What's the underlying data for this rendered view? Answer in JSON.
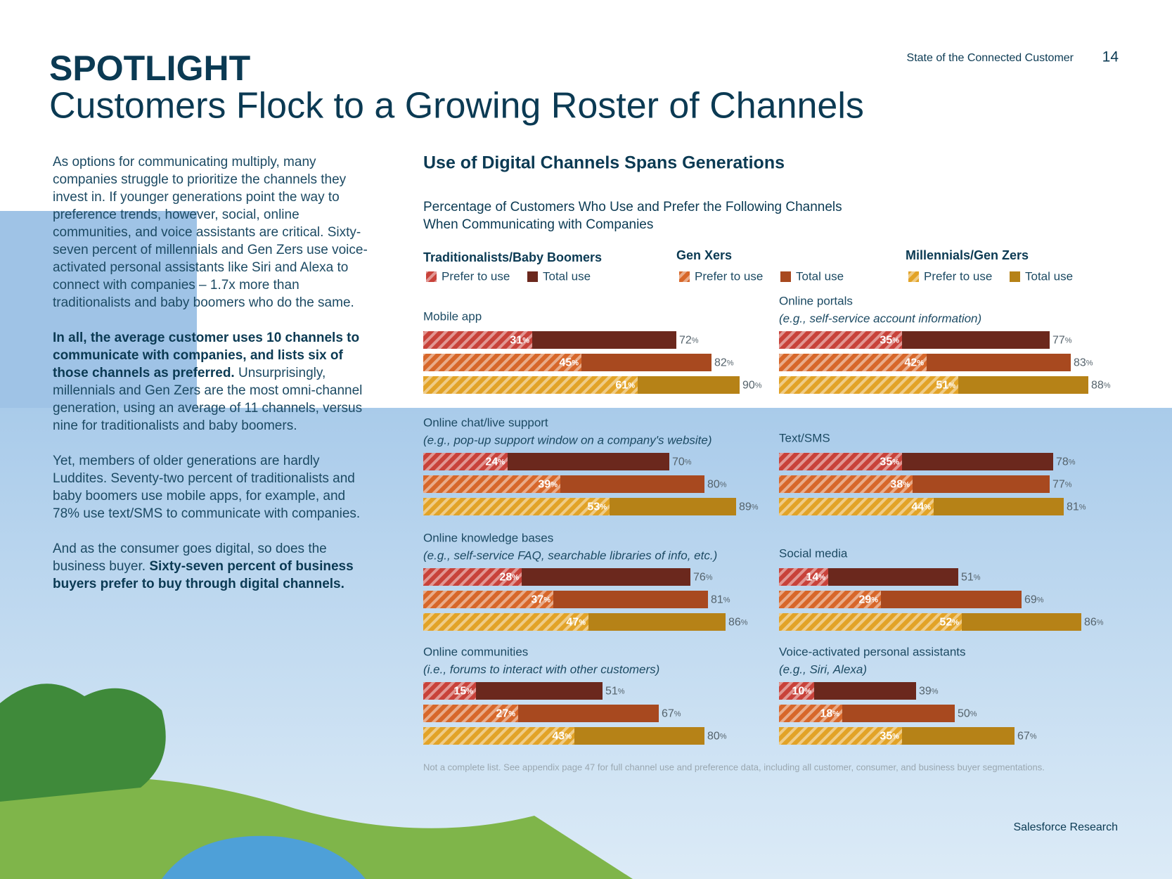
{
  "header": {
    "report": "State of the Connected Customer",
    "page": "14",
    "kicker": "SPOTLIGHT",
    "title": "Customers Flock to a Growing Roster of Channels"
  },
  "body": {
    "paragraphs": [
      [
        {
          "text": "As options for communicating multiply, many companies struggle to prioritize the channels they invest in. If younger generations point the way to preference trends, however, social, online communities, and voice assistants are critical. Sixty-seven percent of millennials and Gen Zers use voice-activated personal assistants like Siri and Alexa to connect with companies – 1.7x more than traditionalists and baby boomers who do the same.",
          "bold": false
        }
      ],
      [
        {
          "text": "In all, the average customer uses 10 channels to communicate with companies, and lists six of those channels as preferred.",
          "bold": true
        },
        {
          "text": " Unsurprisingly, millennials and Gen Zers are the most omni-channel generation, using an average of 11 channels, versus nine for traditionalists and baby boomers.",
          "bold": false
        }
      ],
      [
        {
          "text": "Yet, members of older generations are hardly Luddites. Seventy-two percent of traditionalists and baby boomers use mobile apps, for example, and 78% use text/SMS to communicate with companies.",
          "bold": false
        }
      ],
      [
        {
          "text": "And as the consumer goes digital, so does the business buyer. ",
          "bold": false
        },
        {
          "text": "Sixty-seven percent of business buyers prefer to buy through digital channels.",
          "bold": true
        }
      ]
    ]
  },
  "chart": {
    "title": "Use of Digital Channels Spans Generations",
    "subtitle": [
      "Percentage of Customers Who Use and Prefer the Following Channels",
      "When Communicating with Companies"
    ],
    "unit": "%",
    "generations": [
      {
        "name": "Traditionalists/Baby Boomers",
        "prefer_label": "Prefer to use",
        "total_label": "Total use",
        "total_color": "#6b281d",
        "prefer_color": "#c8423a"
      },
      {
        "name": "Gen Xers",
        "prefer_label": "Prefer to use",
        "total_label": "Total use",
        "total_color": "#a8491f",
        "prefer_color": "#d7672a"
      },
      {
        "name": "Millennials/Gen Zers",
        "prefer_label": "Prefer to use",
        "total_label": "Total use",
        "total_color": "#b68217",
        "prefer_color": "#e2a327"
      }
    ],
    "panels": [
      {
        "label": "Mobile app",
        "rows": [
          {
            "prefer": 31,
            "total": 72
          },
          {
            "prefer": 45,
            "total": 82
          },
          {
            "prefer": 61,
            "total": 90
          }
        ]
      },
      {
        "label": "Online portals",
        "note": "(e.g., self-service account information)",
        "rows": [
          {
            "prefer": 35,
            "total": 77
          },
          {
            "prefer": 42,
            "total": 83
          },
          {
            "prefer": 51,
            "total": 88
          }
        ]
      },
      {
        "label": "Online chat/live support",
        "note": "(e.g., pop-up support window on a company's website)",
        "rows": [
          {
            "prefer": 24,
            "total": 70
          },
          {
            "prefer": 39,
            "total": 80
          },
          {
            "prefer": 53,
            "total": 89
          }
        ]
      },
      {
        "label": "Text/SMS",
        "rows": [
          {
            "prefer": 35,
            "total": 78
          },
          {
            "prefer": 38,
            "total": 77
          },
          {
            "prefer": 44,
            "total": 81
          }
        ]
      },
      {
        "label": "Online knowledge bases",
        "note": "(e.g., self-service FAQ, searchable libraries of info, etc.)",
        "rows": [
          {
            "prefer": 28,
            "total": 76
          },
          {
            "prefer": 37,
            "total": 81
          },
          {
            "prefer": 47,
            "total": 86
          }
        ]
      },
      {
        "label": "Social media",
        "rows": [
          {
            "prefer": 14,
            "total": 51
          },
          {
            "prefer": 29,
            "total": 69
          },
          {
            "prefer": 52,
            "total": 86
          }
        ]
      },
      {
        "label": "Online communities",
        "note": "(i.e., forums to interact with other customers)",
        "rows": [
          {
            "prefer": 15,
            "total": 51
          },
          {
            "prefer": 27,
            "total": 67
          },
          {
            "prefer": 43,
            "total": 80
          }
        ]
      },
      {
        "label": "Voice-activated personal assistants",
        "note": "(e.g., Siri, Alexa)",
        "rows": [
          {
            "prefer": 10,
            "total": 39
          },
          {
            "prefer": 18,
            "total": 50
          },
          {
            "prefer": 35,
            "total": 67
          }
        ]
      }
    ],
    "footnote": "Not a complete list. See appendix page 47 for full channel use and preference data, including all customer, consumer, and business buyer segmentations."
  },
  "footer": {
    "source": "Salesforce Research"
  }
}
